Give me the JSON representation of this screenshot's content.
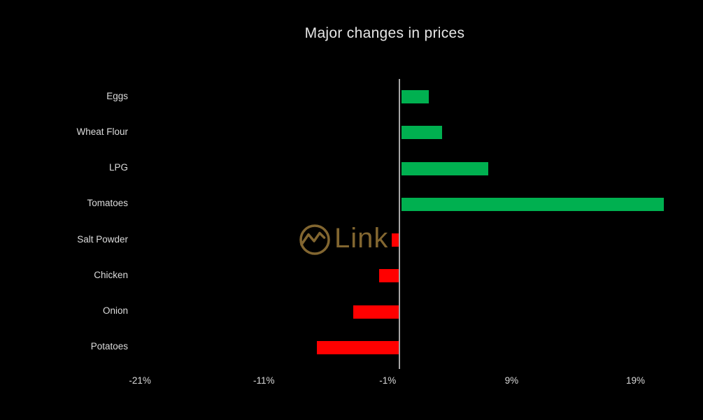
{
  "title": "Major changes in prices",
  "watermark": {
    "text": "Link",
    "icon": "m-circle-logo",
    "color": "#8a6c33"
  },
  "colors": {
    "background": "#000000",
    "positive": "#00b050",
    "negative": "#ff0000",
    "axis_line": "#a6a6a6",
    "label_text": "#dcdcdc",
    "title_text": "#e6e6e6"
  },
  "chart_data": {
    "type": "bar",
    "orientation": "horizontal",
    "title": "Major changes in prices",
    "categories": [
      "Eggs",
      "Wheat Flour",
      "LPG",
      "Tomatoes",
      "Salt Powder",
      "Chicken",
      "Onion",
      "Potatoes"
    ],
    "values": [
      2.2,
      3.3,
      7.0,
      21.2,
      -0.7,
      -1.7,
      -3.8,
      -6.7
    ],
    "unit": "%",
    "xlabel": "",
    "ylabel": "",
    "x_tick_labels": [
      "-21%",
      "-11%",
      "-1%",
      "9%",
      "19%"
    ],
    "x_tick_values": [
      -21,
      -11,
      -1,
      9,
      19
    ],
    "xlim": [
      -24,
      24
    ],
    "grid": false,
    "legend": false,
    "positive_color": "#00b050",
    "negative_color": "#ff0000"
  }
}
